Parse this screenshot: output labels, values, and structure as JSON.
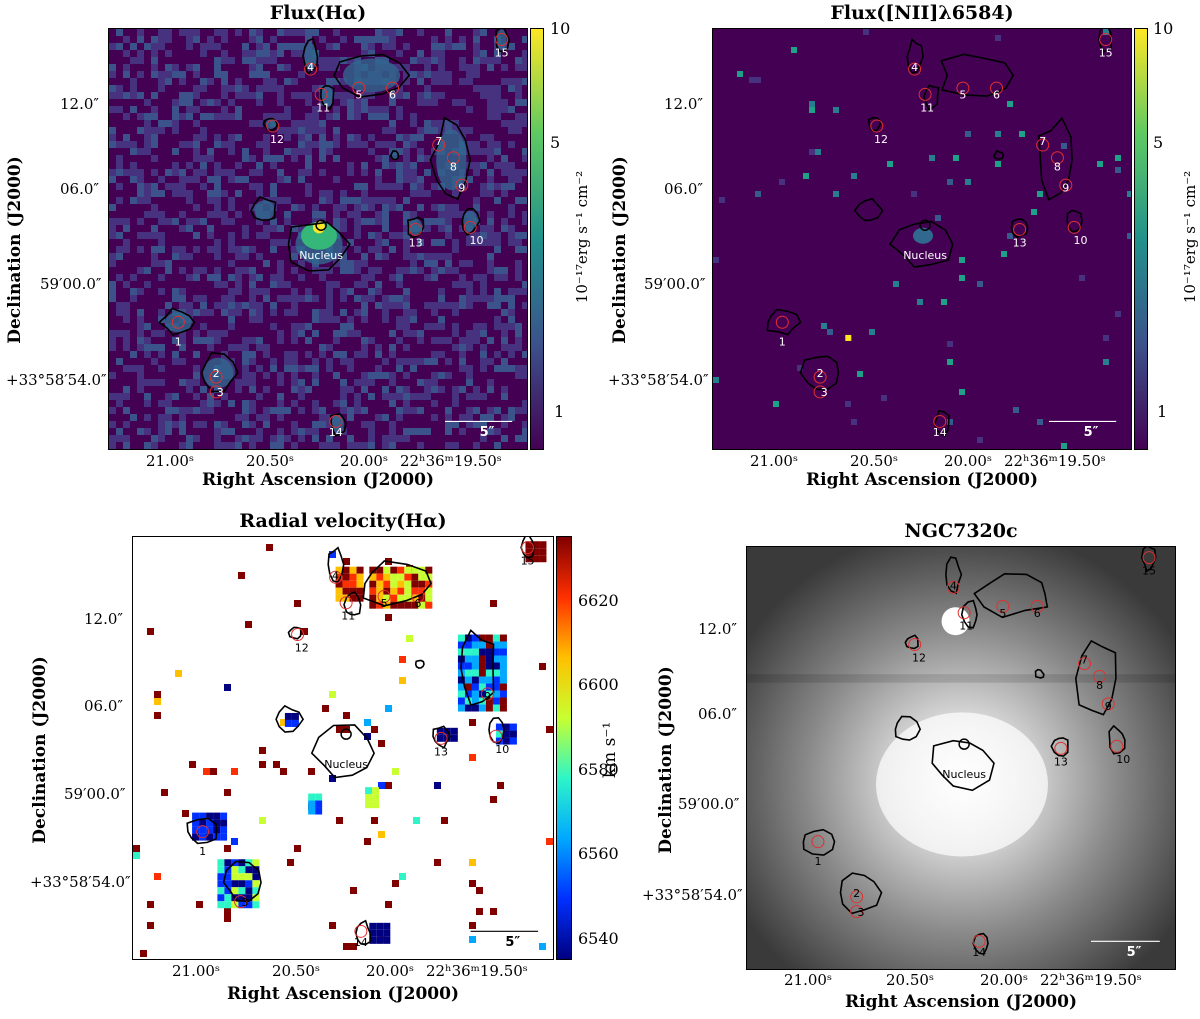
{
  "chart_data": [
    {
      "type": "heatmap",
      "title": "Flux(Hα)",
      "xlabel": "Right Ascension (J2000)",
      "ylabel": "Declination (J2000)",
      "x_ticks": [
        "21.00ˢ",
        "20.50ˢ",
        "20.00ˢ",
        "22ʰ36ᵐ19.50ˢ"
      ],
      "y_ticks": [
        "12.0″",
        "06.0″",
        "59′00.0″",
        "+33°58′54.0″"
      ],
      "colorbar_label": "10⁻¹⁷erg s⁻¹ cm⁻²",
      "colorbar_ticks": [
        "10",
        "5",
        "1"
      ],
      "colormap": "viridis",
      "scale_bar": "5″",
      "regions": [
        "1",
        "2",
        "3",
        "4",
        "5",
        "6",
        "7",
        "8",
        "9",
        "10",
        "11",
        "12",
        "13",
        "14",
        "15",
        "Nucleus"
      ]
    },
    {
      "type": "heatmap",
      "title": "Flux([NII]λ6584)",
      "xlabel": "Right Ascension (J2000)",
      "ylabel": "Declination (J2000)",
      "x_ticks": [
        "21.00ˢ",
        "20.50ˢ",
        "20.00ˢ",
        "22ʰ36ᵐ19.50ˢ"
      ],
      "y_ticks": [
        "12.0″",
        "06.0″",
        "59′00.0″",
        "+33°58′54.0″"
      ],
      "colorbar_label": "10⁻¹⁷erg s⁻¹ cm⁻²",
      "colorbar_ticks": [
        "10",
        "5",
        "1"
      ],
      "colormap": "viridis",
      "scale_bar": "5″",
      "regions": [
        "1",
        "2",
        "3",
        "4",
        "5",
        "6",
        "7",
        "8",
        "9",
        "10",
        "11",
        "12",
        "13",
        "14",
        "15",
        "Nucleus"
      ]
    },
    {
      "type": "heatmap",
      "title": "Radial velocity(Hα)",
      "xlabel": "Right Ascension (J2000)",
      "ylabel": "Declination (J2000)",
      "x_ticks": [
        "21.00ˢ",
        "20.50ˢ",
        "20.00ˢ",
        "22ʰ36ᵐ19.50ˢ"
      ],
      "y_ticks": [
        "12.0″",
        "06.0″",
        "59′00.0″",
        "+33°58′54.0″"
      ],
      "colorbar_label": "km s⁻¹",
      "colorbar_ticks": [
        "6620",
        "6600",
        "6580",
        "6560",
        "6540"
      ],
      "colorbar_range": [
        6535,
        6635
      ],
      "colormap": "jet",
      "scale_bar": "5″",
      "regions": [
        "1",
        "3",
        "4",
        "5",
        "6",
        "9",
        "10",
        "11",
        "12",
        "13",
        "14",
        "15",
        "Nucleus"
      ]
    },
    {
      "type": "heatmap",
      "title": "NGC7320c",
      "xlabel": "Right Ascension (J2000)",
      "ylabel": "Declination (J2000)",
      "x_ticks": [
        "21.00ˢ",
        "20.50ˢ",
        "20.00ˢ",
        "22ʰ36ᵐ19.50ˢ"
      ],
      "y_ticks": [
        "12.0″",
        "06.0″",
        "59′00.0″",
        "+33°58′54.0″"
      ],
      "colormap": "gray",
      "scale_bar": "5″",
      "regions": [
        "1",
        "2",
        "3",
        "4",
        "5",
        "6",
        "7",
        "8",
        "9",
        "10",
        "11",
        "12",
        "13",
        "14",
        "15",
        "Nucleus"
      ]
    }
  ]
}
